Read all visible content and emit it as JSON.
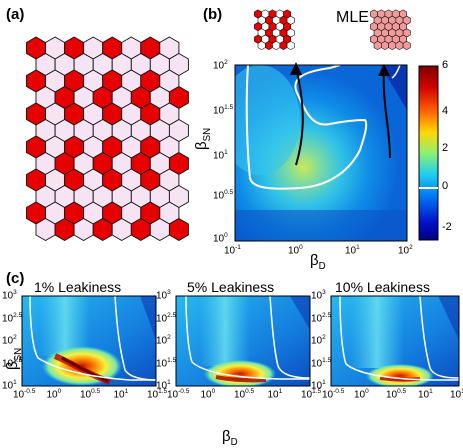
{
  "panels": {
    "a": {
      "letter": "(a)"
    },
    "b": {
      "letter": "(b)",
      "title": "MLE",
      "x_label_main": "β",
      "x_label_sub": "D",
      "y_label_main": "β",
      "y_label_sub": "SN",
      "x_ticks": [
        {
          "base": "10",
          "exp": "-1"
        },
        {
          "base": "10",
          "exp": "0"
        },
        {
          "base": "10",
          "exp": "1"
        },
        {
          "base": "10",
          "exp": "2"
        }
      ],
      "y_ticks": [
        {
          "base": "10",
          "exp": "0"
        },
        {
          "base": "10",
          "exp": "0.5"
        },
        {
          "base": "10",
          "exp": "1"
        },
        {
          "base": "10",
          "exp": "1.5"
        },
        {
          "base": "10",
          "exp": "2"
        }
      ],
      "colorbar_ticks": [
        "6",
        "4",
        "2",
        "0",
        "-2"
      ]
    },
    "c": {
      "letter": "(c)",
      "subtitles": [
        "1% Leakiness",
        "5% Leakiness",
        "10% Leakiness"
      ],
      "x_label_main": "β",
      "x_label_sub": "D",
      "y_label_main": "β",
      "y_label_sub": "SN",
      "x_ticks": [
        {
          "base": "10",
          "exp": "-0.5"
        },
        {
          "base": "10",
          "exp": "0"
        },
        {
          "base": "10",
          "exp": "0.5"
        },
        {
          "base": "10",
          "exp": "1"
        },
        {
          "base": "10",
          "exp": "1.5"
        }
      ],
      "y_ticks": [
        {
          "base": "10",
          "exp": "1"
        },
        {
          "base": "10",
          "exp": "1.5"
        },
        {
          "base": "10",
          "exp": "2"
        },
        {
          "base": "10",
          "exp": "2.5"
        },
        {
          "base": "10",
          "exp": "3"
        }
      ]
    }
  },
  "colors": {
    "hex_red": "#e60000",
    "hex_pale": "#f6e3f3",
    "hex_edge": "#111111",
    "colormap_low": "#00007f",
    "colormap_high": "#7f0000"
  },
  "chart_data": [
    {
      "panel": "b",
      "type": "heatmap",
      "title": "MLE",
      "xscale": "log",
      "yscale": "log",
      "xlim": [
        0.1,
        100
      ],
      "ylim": [
        1,
        100
      ],
      "colorbar_range": [
        -2.5,
        6.3
      ],
      "contour_level": 0
    },
    {
      "panel": "c1",
      "type": "heatmap",
      "title": "1% Leakiness",
      "xscale": "log",
      "yscale": "log",
      "xlim": [
        0.316,
        31.6
      ],
      "ylim": [
        10,
        1000
      ]
    },
    {
      "panel": "c2",
      "type": "heatmap",
      "title": "5% Leakiness",
      "xscale": "log",
      "yscale": "log",
      "xlim": [
        0.316,
        31.6
      ],
      "ylim": [
        10,
        1000
      ]
    },
    {
      "panel": "c3",
      "type": "heatmap",
      "title": "10% Leakiness",
      "xscale": "log",
      "yscale": "log",
      "xlim": [
        0.316,
        31.6
      ],
      "ylim": [
        10,
        1000
      ]
    }
  ]
}
